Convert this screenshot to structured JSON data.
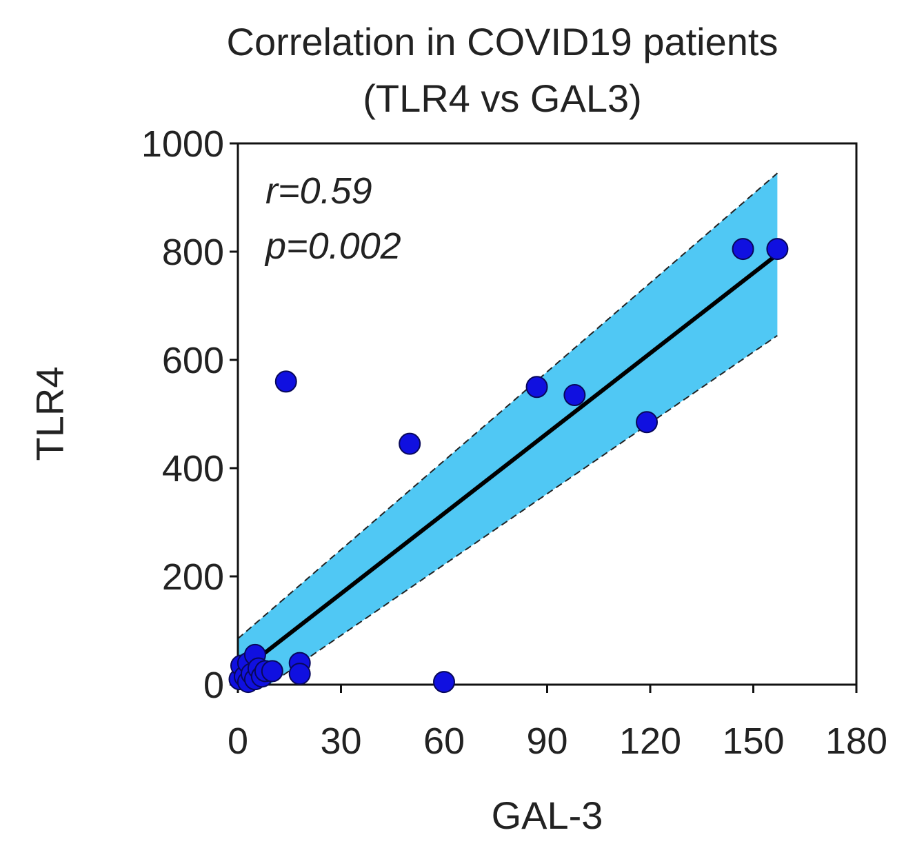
{
  "chart_data": {
    "type": "scatter",
    "title_line1": "Correlation in COVID19 patients",
    "title_line2": "(TLR4 vs GAL3)",
    "xlabel": "GAL-3",
    "ylabel": "TLR4",
    "xlim": [
      0,
      180
    ],
    "ylim": [
      0,
      1000
    ],
    "x_ticks": [
      0,
      30,
      60,
      90,
      120,
      150,
      180
    ],
    "y_ticks": [
      0,
      200,
      400,
      600,
      800,
      1000
    ],
    "annotations": {
      "r": "r=0.59",
      "p": "p=0.002"
    },
    "regression": {
      "x": [
        0,
        157
      ],
      "y": [
        20,
        795
      ]
    },
    "confidence_band": {
      "x": [
        0,
        157
      ],
      "upper": [
        85,
        945
      ],
      "lower": [
        -40,
        645
      ]
    },
    "points": [
      {
        "x": 0.5,
        "y": 10
      },
      {
        "x": 1,
        "y": 35
      },
      {
        "x": 2,
        "y": 15
      },
      {
        "x": 3,
        "y": 5
      },
      {
        "x": 3,
        "y": 40
      },
      {
        "x": 4,
        "y": 20
      },
      {
        "x": 5,
        "y": 55
      },
      {
        "x": 5,
        "y": 10
      },
      {
        "x": 6,
        "y": 30
      },
      {
        "x": 7,
        "y": 15
      },
      {
        "x": 8,
        "y": 25
      },
      {
        "x": 10,
        "y": 25
      },
      {
        "x": 14,
        "y": 560
      },
      {
        "x": 18,
        "y": 40
      },
      {
        "x": 18,
        "y": 20
      },
      {
        "x": 50,
        "y": 445
      },
      {
        "x": 60,
        "y": 5
      },
      {
        "x": 87,
        "y": 550
      },
      {
        "x": 98,
        "y": 535
      },
      {
        "x": 119,
        "y": 485
      },
      {
        "x": 147,
        "y": 805
      },
      {
        "x": 157,
        "y": 805
      }
    ],
    "colors": {
      "point": "#1010e0",
      "band": "#50c8f4",
      "line": "#000000"
    }
  }
}
